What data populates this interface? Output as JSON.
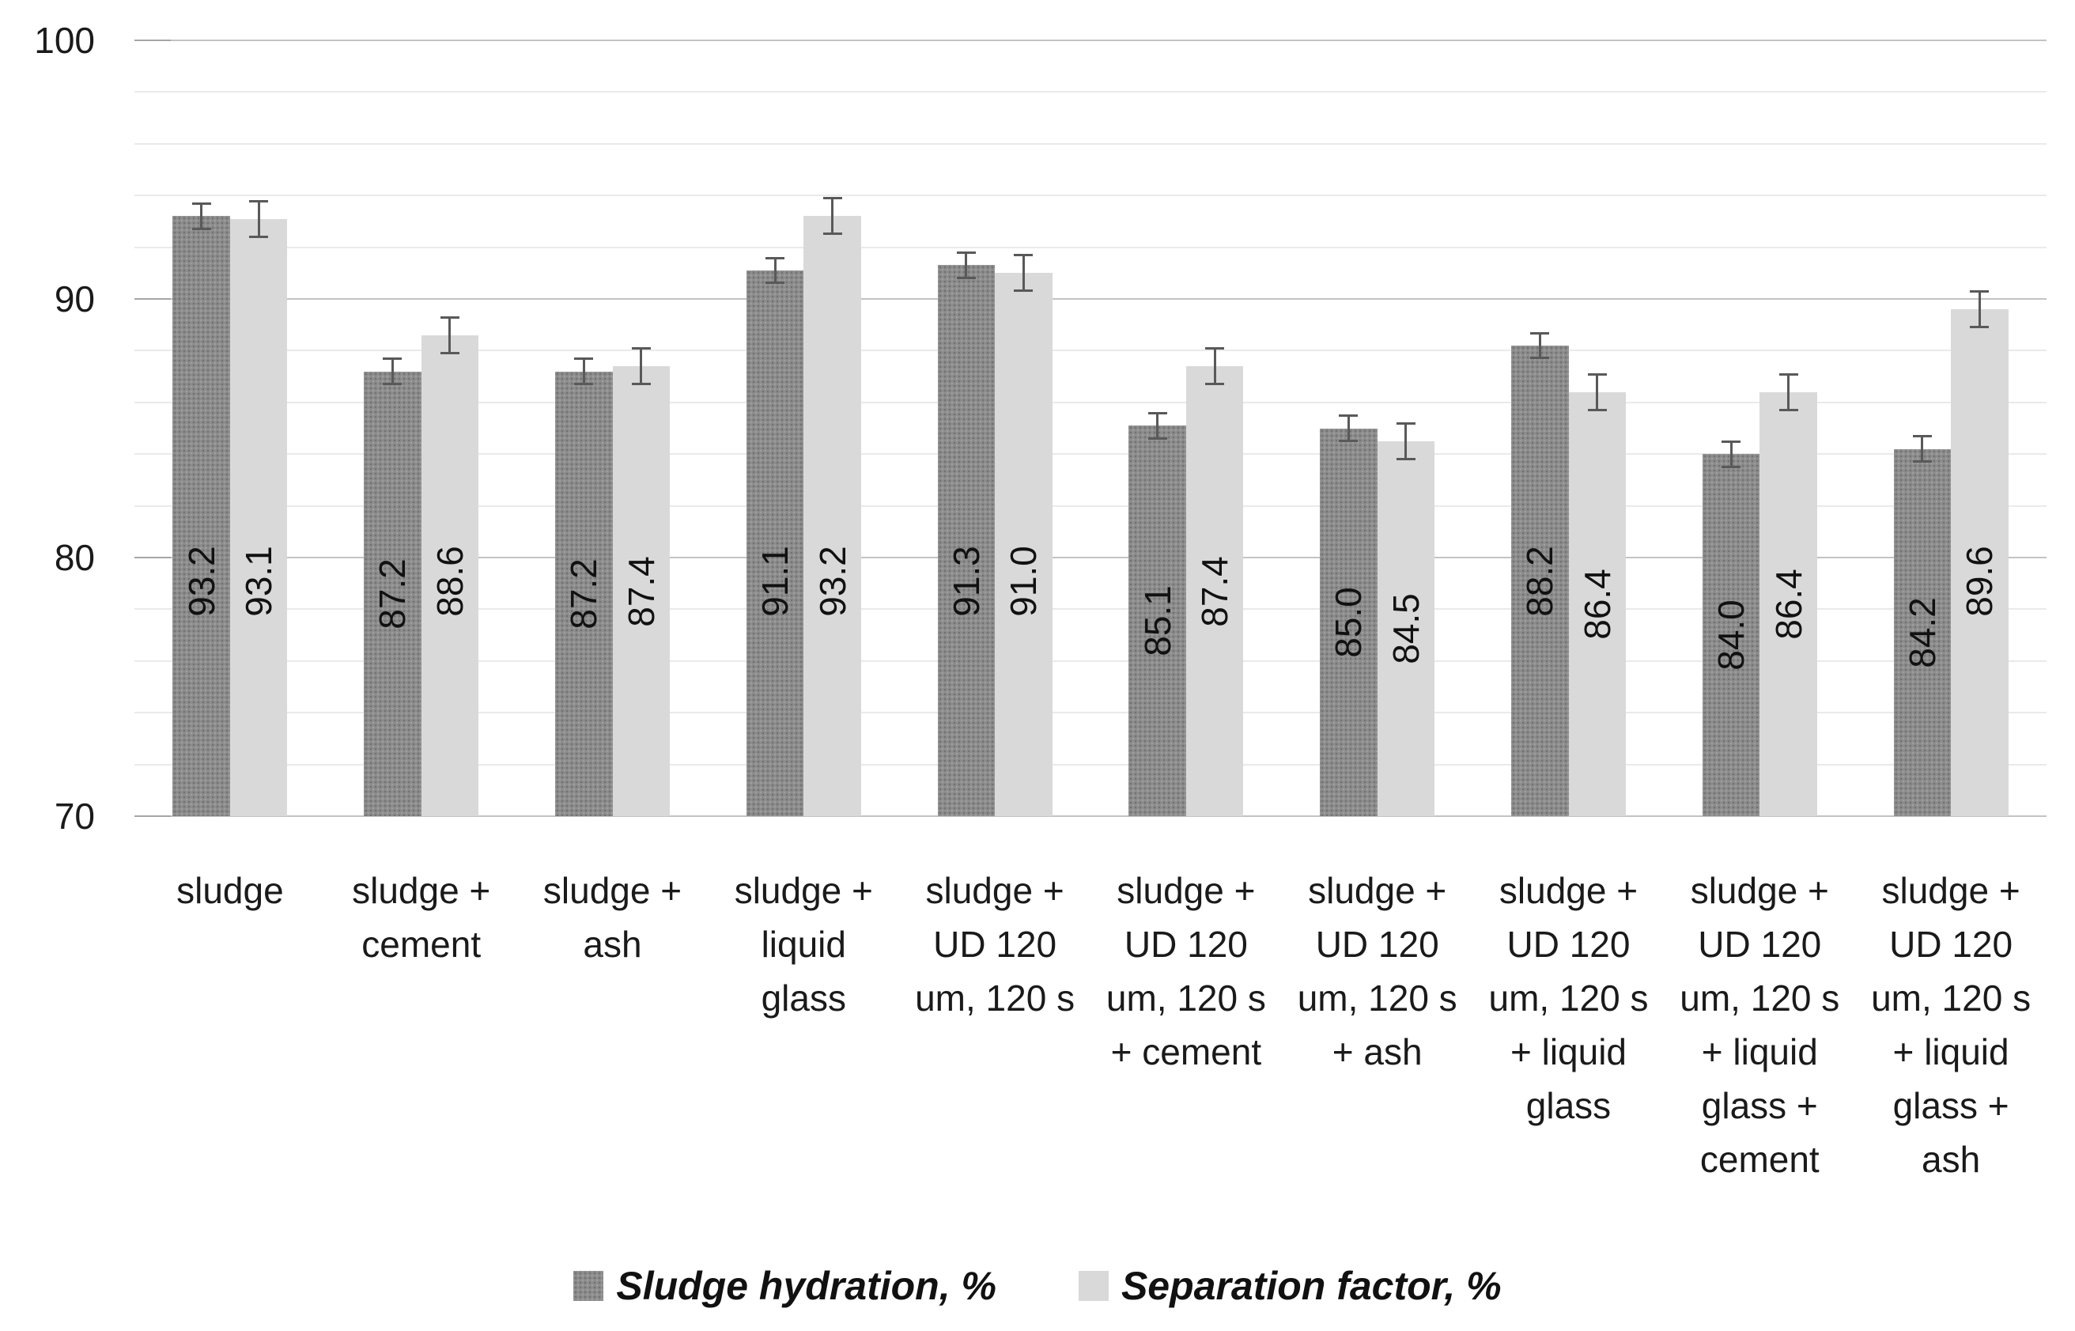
{
  "chart_data": {
    "type": "bar",
    "title": "",
    "categories": [
      {
        "label": "sludge",
        "lines": [
          "sludge"
        ]
      },
      {
        "label": "sludge + cement",
        "lines": [
          "sludge +",
          "cement"
        ]
      },
      {
        "label": "sludge + ash",
        "lines": [
          "sludge +",
          "ash"
        ]
      },
      {
        "label": "sludge + liquid glass",
        "lines": [
          "sludge +",
          "liquid",
          "glass"
        ]
      },
      {
        "label": "sludge + UD 120 um, 120 s",
        "lines": [
          "sludge +",
          "UD 120",
          "um, 120 s"
        ]
      },
      {
        "label": "sludge + UD 120 um, 120 s + cement",
        "lines": [
          "sludge +",
          "UD 120",
          "um, 120 s",
          "+ cement"
        ]
      },
      {
        "label": "sludge + UD 120 um, 120 s + ash",
        "lines": [
          "sludge +",
          "UD 120",
          "um, 120 s",
          "+ ash"
        ]
      },
      {
        "label": "sludge + UD 120 um, 120 s + liquid glass",
        "lines": [
          "sludge +",
          "UD 120",
          "um, 120 s",
          "+ liquid",
          "glass"
        ]
      },
      {
        "label": "sludge + UD 120 um, 120 s + liquid glass + cement",
        "lines": [
          "sludge +",
          "UD 120",
          "um, 120 s",
          "+ liquid",
          "glass +",
          "cement"
        ]
      },
      {
        "label": "sludge + UD 120 um, 120 s + liquid glass + ash",
        "lines": [
          "sludge +",
          "UD 120",
          "um, 120 s",
          "+ liquid",
          "glass +",
          "ash"
        ]
      }
    ],
    "series": [
      {
        "name": "Sludge hydration, %",
        "color": "#8c8c8c",
        "pattern": "speckle",
        "values": [
          93.2,
          87.2,
          87.2,
          91.1,
          91.3,
          85.1,
          85.0,
          88.2,
          84.0,
          84.2
        ],
        "error": 0.5
      },
      {
        "name": "Separation factor, %",
        "color": "#d9d9d9",
        "pattern": "none",
        "values": [
          93.1,
          88.6,
          87.4,
          93.2,
          91.0,
          87.4,
          84.5,
          86.4,
          86.4,
          89.6
        ],
        "error": 0.7
      }
    ],
    "ylabel": "",
    "xlabel": "",
    "ylim": [
      70,
      100
    ],
    "yticks": [
      100,
      90,
      80,
      70
    ],
    "minor_grid_step": 2,
    "grid": true,
    "error_bar_color": "#595959",
    "legend_position": "bottom"
  }
}
